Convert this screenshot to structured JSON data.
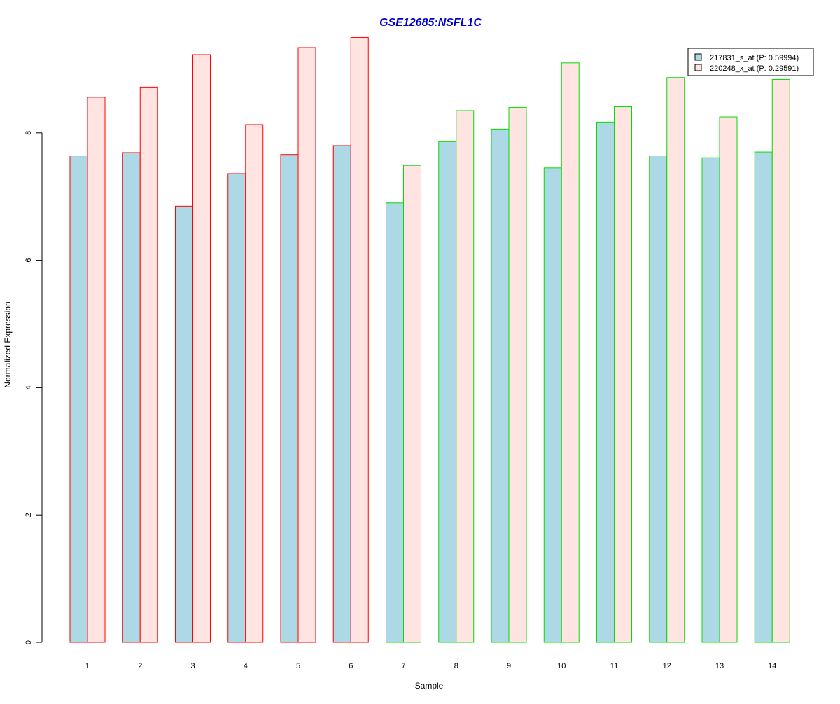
{
  "chart_data": {
    "type": "bar",
    "title": "GSE12685:NSFL1C",
    "title_color": "#0000CC",
    "xlabel": "Sample",
    "ylabel": "Normalized Expression",
    "ylim": [
      0,
      9.5
    ],
    "yticks": [
      0,
      2,
      4,
      6,
      8
    ],
    "grid": false,
    "legend_position": "top-right",
    "categories": [
      "1",
      "2",
      "3",
      "4",
      "5",
      "6",
      "7",
      "8",
      "9",
      "10",
      "11",
      "12",
      "13",
      "14"
    ],
    "group_border_colors": [
      "#FF0000",
      "#FF0000",
      "#FF0000",
      "#FF0000",
      "#FF0000",
      "#FF0000",
      "#00DD00",
      "#00DD00",
      "#00DD00",
      "#00DD00",
      "#00DD00",
      "#00DD00",
      "#00DD00",
      "#00DD00"
    ],
    "series": [
      {
        "name": "217831_s_at (P: 0.59994)",
        "fill": "#ADD8E6",
        "values": [
          7.64,
          7.69,
          6.85,
          7.36,
          7.66,
          7.8,
          6.9,
          7.87,
          8.06,
          7.45,
          8.17,
          7.64,
          7.61,
          7.7
        ]
      },
      {
        "name": "220248_x_at (P: 0.29591)",
        "fill": "#FFE4E1",
        "values": [
          8.56,
          8.72,
          9.23,
          8.13,
          9.34,
          9.5,
          7.49,
          8.35,
          8.4,
          9.1,
          8.41,
          8.87,
          8.25,
          8.84
        ]
      }
    ]
  }
}
